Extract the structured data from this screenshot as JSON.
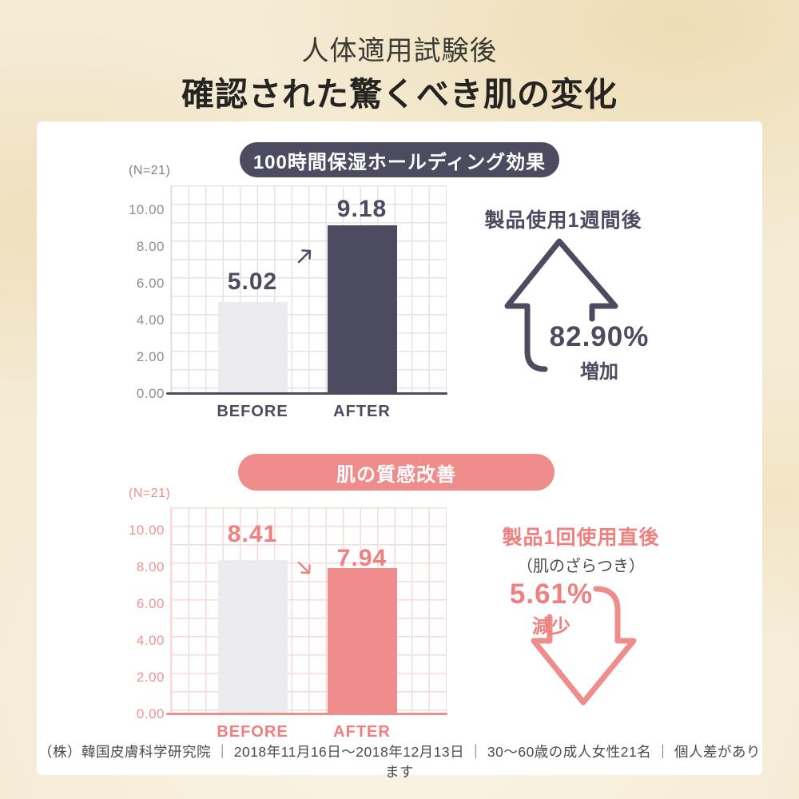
{
  "page": {
    "title_line1": "人体適用試験後",
    "title_line2": "確認された驚くべき肌の変化",
    "footer": "（株）韓国皮膚科学研究院 ｜ 2018年11月16日〜2018年12月13日 ｜ 30〜60歳の成人女性21名 ｜ 個人差があります"
  },
  "colors": {
    "navy_accent": "#4c4b60",
    "pink_accent": "#ef8c8c",
    "pink_text": "#ee8180",
    "gray_bar": "#ececee",
    "background_beige": "#f5ecd6",
    "card_white": "#ffffff",
    "grid_gray": "#e3e3e9",
    "grid_pink": "#f7dada",
    "axis_gray_text": "#8d8d96",
    "footer_text": "#4a4a4a"
  },
  "chart_data": [
    {
      "type": "bar",
      "title": "100時間保湿ホールディング効果",
      "sample_label": "(N=21)",
      "categories": [
        "BEFORE",
        "AFTER"
      ],
      "values": [
        5.02,
        9.18
      ],
      "value_labels": [
        "5.02",
        "9.18"
      ],
      "y_ticks": [
        "10.00",
        "8.00",
        "6.00",
        "4.00",
        "2.00",
        "0.00"
      ],
      "ylim": [
        0,
        11.3
      ],
      "grid": true,
      "legend": "none",
      "accent": "#4c4b60",
      "annotation": {
        "heading": "製品使用1週間後",
        "percent": "82.90%",
        "direction_label": "増加",
        "direction": "up"
      }
    },
    {
      "type": "bar",
      "title": "肌の質感改善",
      "sample_label": "(N=21)",
      "categories": [
        "BEFORE",
        "AFTER"
      ],
      "values": [
        8.41,
        7.94
      ],
      "value_labels": [
        "8.41",
        "7.94"
      ],
      "y_ticks": [
        "10.00",
        "8.00",
        "6.00",
        "4.00",
        "2.00",
        "0.00"
      ],
      "ylim": [
        0,
        11.3
      ],
      "grid": true,
      "legend": "none",
      "accent": "#ef8c8c",
      "annotation": {
        "heading": "製品1回使用直後",
        "subheading": "（肌のざらつき）",
        "percent": "5.61%",
        "direction_label": "減少",
        "direction": "down"
      }
    }
  ]
}
